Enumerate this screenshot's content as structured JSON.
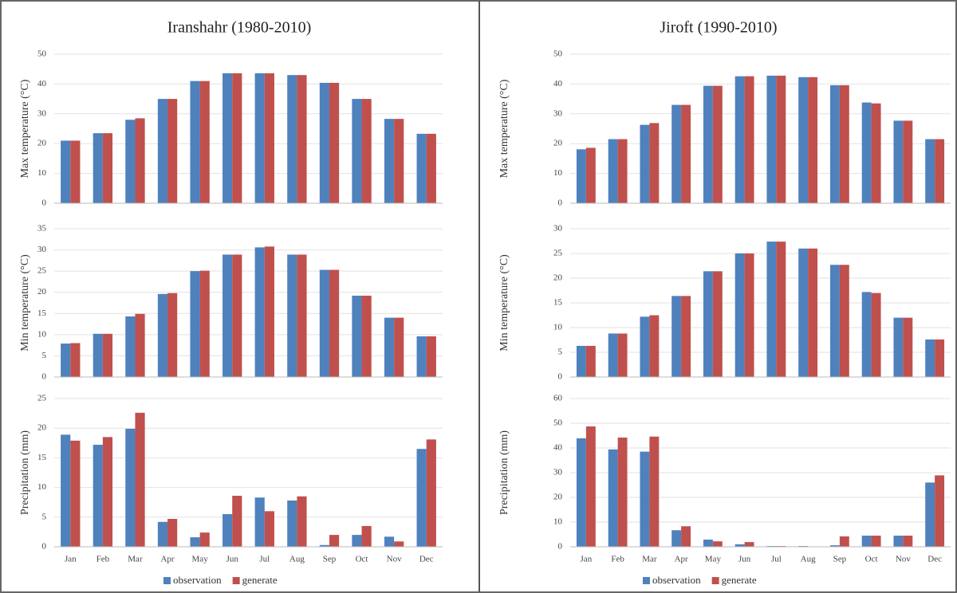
{
  "chart_data": [
    {
      "type": "bar",
      "title": "Iranshahr (1980-2010)",
      "y_label": "Max temperature (°C)",
      "ylim": [
        0,
        50
      ],
      "yticks": [
        0,
        10,
        20,
        30,
        40,
        50
      ],
      "grid": true,
      "series": [
        {
          "color": "#4f81bd",
          "values": [
            21,
            23.5,
            28,
            35,
            41,
            43.6,
            43.6,
            43,
            40.4,
            35,
            28.3,
            23.3
          ]
        },
        {
          "color": "#c0504d",
          "values": [
            21,
            23.5,
            28.5,
            35,
            41,
            43.6,
            43.6,
            43,
            40.4,
            35,
            28.3,
            23.3
          ]
        }
      ]
    },
    {
      "type": "bar",
      "y_label": "Min temperature (°C)",
      "ylim": [
        0,
        35
      ],
      "yticks": [
        0,
        5,
        10,
        15,
        20,
        25,
        30,
        35
      ],
      "grid": true,
      "series": [
        {
          "color": "#4f81bd",
          "values": [
            7.9,
            10.2,
            14.3,
            19.6,
            25,
            28.9,
            30.6,
            28.9,
            25.3,
            19.2,
            14,
            9.6
          ]
        },
        {
          "color": "#c0504d",
          "values": [
            8,
            10.2,
            14.9,
            19.8,
            25.1,
            28.9,
            30.8,
            28.9,
            25.3,
            19.2,
            14,
            9.6
          ]
        }
      ]
    },
    {
      "type": "bar",
      "y_label": "Precipitation (mm)",
      "ylim": [
        0,
        25
      ],
      "yticks": [
        0,
        5,
        10,
        15,
        20,
        25
      ],
      "grid": true,
      "legend": "bottom",
      "categories": [
        "Jan",
        "Feb",
        "Mar",
        "Apr",
        "May",
        "Jun",
        "Jul",
        "Aug",
        "Sep",
        "Oct",
        "Nov",
        "Dec"
      ],
      "series": [
        {
          "name": "observation",
          "color": "#4f81bd",
          "values": [
            18.9,
            17.2,
            19.9,
            4.2,
            1.6,
            5.5,
            8.3,
            7.8,
            0.3,
            2,
            1.7,
            16.5
          ]
        },
        {
          "name": "generate",
          "color": "#c0504d",
          "values": [
            17.9,
            18.5,
            22.6,
            4.7,
            2.4,
            8.6,
            6,
            8.5,
            2,
            3.5,
            0.9,
            18.1
          ]
        }
      ]
    },
    {
      "type": "bar",
      "title": "Jiroft (1990-2010)",
      "y_label": "Max temperature (°C)",
      "ylim": [
        0,
        50
      ],
      "yticks": [
        0,
        10,
        20,
        30,
        40,
        50
      ],
      "grid": true,
      "series": [
        {
          "color": "#4f81bd",
          "values": [
            18.1,
            21.5,
            26.3,
            33,
            39.4,
            42.6,
            42.8,
            42.3,
            39.6,
            33.8,
            27.7,
            21.5
          ]
        },
        {
          "color": "#c0504d",
          "values": [
            18.6,
            21.5,
            26.9,
            33,
            39.4,
            42.6,
            42.8,
            42.3,
            39.6,
            33.5,
            27.7,
            21.5
          ]
        }
      ]
    },
    {
      "type": "bar",
      "y_label": "Min temperature (°C)",
      "ylim": [
        0,
        30
      ],
      "yticks": [
        0,
        5,
        10,
        15,
        20,
        25,
        30
      ],
      "grid": true,
      "series": [
        {
          "color": "#4f81bd",
          "values": [
            6.3,
            8.8,
            12.2,
            16.4,
            21.4,
            25,
            27.4,
            26,
            22.7,
            17.2,
            12,
            7.6
          ]
        },
        {
          "color": "#c0504d",
          "values": [
            6.3,
            8.8,
            12.5,
            16.4,
            21.4,
            25,
            27.4,
            26,
            22.7,
            17,
            12,
            7.6
          ]
        }
      ]
    },
    {
      "type": "bar",
      "y_label": "Precipitation (mm)",
      "ylim": [
        0,
        60
      ],
      "yticks": [
        0,
        10,
        20,
        30,
        40,
        50,
        60
      ],
      "grid": true,
      "legend": "bottom",
      "categories": [
        "Jan",
        "Feb",
        "Mar",
        "Apr",
        "May",
        "Jun",
        "Jul",
        "Aug",
        "Sep",
        "Oct",
        "Nov",
        "Dec"
      ],
      "series": [
        {
          "name": "observation",
          "color": "#4f81bd",
          "values": [
            43.9,
            39.4,
            38.5,
            6.7,
            2.9,
            1,
            0.3,
            0.3,
            0.6,
            4.5,
            4.5,
            26
          ]
        },
        {
          "name": "generate",
          "color": "#c0504d",
          "values": [
            48.7,
            44.2,
            44.6,
            8.3,
            2.2,
            1.9,
            0.3,
            0.1,
            4.2,
            4.5,
            4.5,
            28.9
          ]
        }
      ]
    }
  ]
}
